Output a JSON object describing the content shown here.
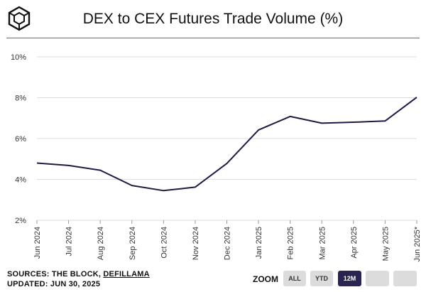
{
  "header": {
    "title": "DEX to CEX Futures Trade Volume (%)"
  },
  "colors": {
    "accent_rule": "#cc2fa9",
    "line": "#1f1a45",
    "grid": "#dddddd"
  },
  "chart_data": {
    "type": "line",
    "title": "DEX to CEX Futures Trade Volume (%)",
    "xlabel": "",
    "ylabel": "",
    "categories": [
      "Jun 2024",
      "Jul 2024",
      "Aug 2024",
      "Sep 2024",
      "Oct 2024",
      "Nov 2024",
      "Dec 2024",
      "Jan 2025",
      "Feb 2025",
      "Mar 2025",
      "Apr 2025",
      "May 2025",
      "Jun 2025*"
    ],
    "series": [
      {
        "name": "DEX to CEX Futures Trade Volume",
        "values": [
          4.8,
          4.68,
          4.45,
          3.7,
          3.45,
          3.62,
          4.78,
          6.42,
          7.08,
          6.75,
          6.8,
          6.86,
          8.02
        ]
      }
    ],
    "yticks": [
      "2%",
      "4%",
      "6%",
      "8%",
      "10%"
    ],
    "ytick_values": [
      2,
      4,
      6,
      8,
      10
    ],
    "ylim": [
      2,
      10
    ],
    "grid": true,
    "legend": "none"
  },
  "footer": {
    "sources_prefix": "SOURCES: THE BLOCK, ",
    "sources_link": "DEFILLAMA",
    "updated": "UPDATED: JUN 30, 2025"
  },
  "zoom": {
    "label": "ZOOM",
    "buttons": [
      {
        "label": "ALL",
        "active": false
      },
      {
        "label": "YTD",
        "active": false
      },
      {
        "label": "12M",
        "active": true
      },
      {
        "label": "",
        "active": false
      },
      {
        "label": "",
        "active": false
      }
    ]
  }
}
